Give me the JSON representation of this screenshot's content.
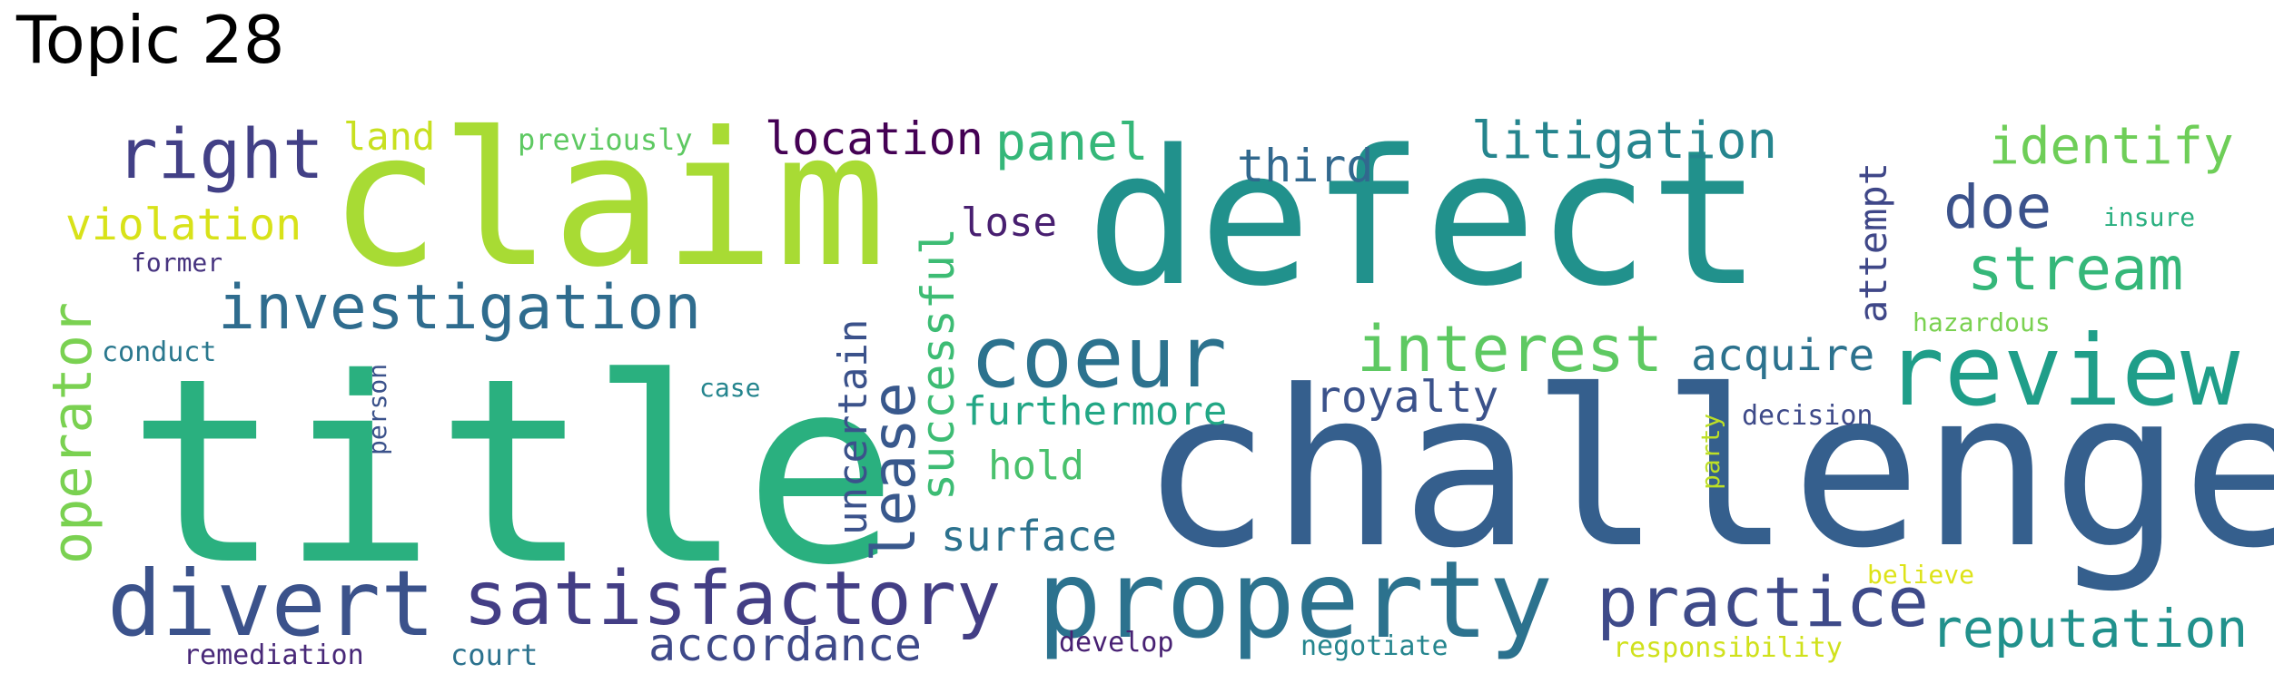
{
  "title": "Topic 28",
  "words": [
    {
      "text": "claim",
      "color": "#a8db34"
    },
    {
      "text": "title",
      "color": "#2ab07f"
    },
    {
      "text": "defect",
      "color": "#21918c"
    },
    {
      "text": "challenge",
      "color": "#355f8d"
    },
    {
      "text": "review",
      "color": "#1f9e89"
    },
    {
      "text": "property",
      "color": "#2c728e"
    },
    {
      "text": "satisfactory",
      "color": "#433e85"
    },
    {
      "text": "divert",
      "color": "#3b528b"
    },
    {
      "text": "coeur",
      "color": "#2c728e"
    },
    {
      "text": "investigation",
      "color": "#2f6c8e"
    },
    {
      "text": "interest",
      "color": "#5ec962"
    },
    {
      "text": "practice",
      "color": "#3e4a89"
    },
    {
      "text": "right",
      "color": "#424086"
    },
    {
      "text": "operator",
      "color": "#7ad151"
    },
    {
      "text": "stream",
      "color": "#35b779"
    },
    {
      "text": "reputation",
      "color": "#21918c"
    },
    {
      "text": "litigation",
      "color": "#25858e"
    },
    {
      "text": "identify",
      "color": "#6ece58"
    },
    {
      "text": "lease",
      "color": "#38588c"
    },
    {
      "text": "successful",
      "color": "#3dbc74"
    },
    {
      "text": "uncertain",
      "color": "#3b528b"
    },
    {
      "text": "accordance",
      "color": "#3e4989"
    },
    {
      "text": "location",
      "color": "#440154"
    },
    {
      "text": "panel",
      "color": "#35b779"
    },
    {
      "text": "doe",
      "color": "#3b528b"
    },
    {
      "text": "violation",
      "color": "#d8e219"
    },
    {
      "text": "royalty",
      "color": "#3b528b"
    },
    {
      "text": "furthermore",
      "color": "#22a785"
    },
    {
      "text": "acquire",
      "color": "#2c728e"
    },
    {
      "text": "attempt",
      "color": "#3f4788"
    },
    {
      "text": "third",
      "color": "#31688e"
    },
    {
      "text": "lose",
      "color": "#481f70"
    },
    {
      "text": "hold",
      "color": "#4ac16d"
    },
    {
      "text": "surface",
      "color": "#2c728e"
    },
    {
      "text": "land",
      "color": "#c8e020"
    },
    {
      "text": "previously",
      "color": "#5ec962"
    },
    {
      "text": "former",
      "color": "#46337f"
    },
    {
      "text": "conduct",
      "color": "#2a788e"
    },
    {
      "text": "person",
      "color": "#3b528b"
    },
    {
      "text": "case",
      "color": "#25858e"
    },
    {
      "text": "remediation",
      "color": "#482878"
    },
    {
      "text": "court",
      "color": "#2c728e"
    },
    {
      "text": "develop",
      "color": "#482173"
    },
    {
      "text": "negotiate",
      "color": "#25858e"
    },
    {
      "text": "responsibility",
      "color": "#d0e11c"
    },
    {
      "text": "believe",
      "color": "#dde318"
    },
    {
      "text": "decision",
      "color": "#3e4a89"
    },
    {
      "text": "party",
      "color": "#bddf26"
    },
    {
      "text": "hazardous",
      "color": "#7ad151"
    },
    {
      "text": "insure",
      "color": "#29af7f"
    }
  ]
}
